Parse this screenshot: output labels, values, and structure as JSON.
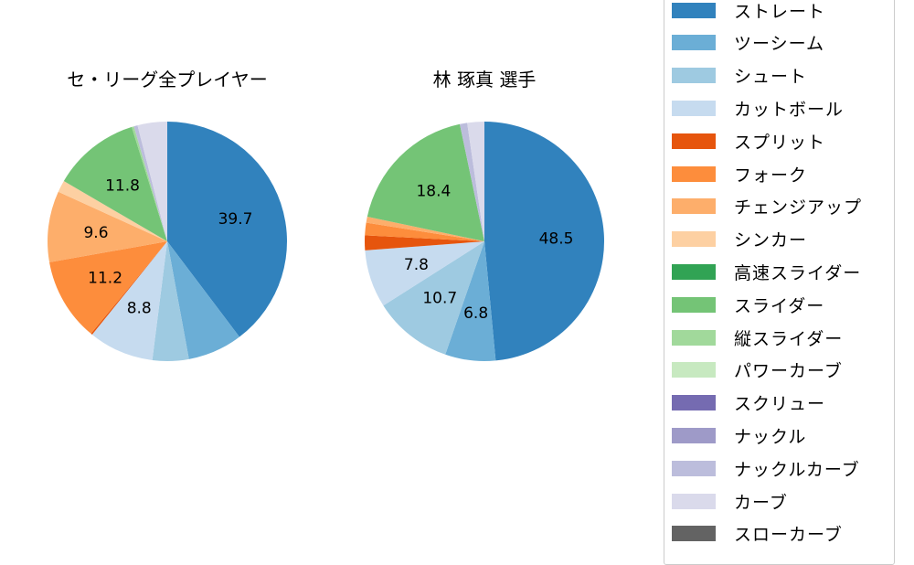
{
  "chart_data": [
    {
      "type": "pie",
      "title": "セ・リーグ全プレイヤー",
      "start_angle": 90,
      "direction": "clockwise",
      "categories": [
        "ストレート",
        "ツーシーム",
        "シュート",
        "カットボール",
        "スプリット",
        "フォーク",
        "チェンジアップ",
        "シンカー",
        "スライダー",
        "縦スライダー",
        "ナックルカーブ",
        "カーブ"
      ],
      "values": [
        39.7,
        7.4,
        4.9,
        8.8,
        0.2,
        11.2,
        9.6,
        1.6,
        11.8,
        0.3,
        0.5,
        4.0
      ],
      "labels_shown": [
        "39.7",
        "",
        "",
        "8.8",
        "",
        "11.2",
        "9.6",
        "",
        "11.8",
        "",
        "",
        ""
      ]
    },
    {
      "type": "pie",
      "title": "林 琢真  選手",
      "start_angle": 90,
      "direction": "clockwise",
      "categories": [
        "ストレート",
        "ツーシーム",
        "シュート",
        "カットボール",
        "スプリット",
        "フォーク",
        "チェンジアップ",
        "スライダー",
        "ナックルカーブ",
        "カーブ"
      ],
      "values": [
        48.5,
        6.8,
        10.7,
        7.8,
        2.0,
        1.7,
        0.8,
        18.4,
        1.0,
        2.3
      ],
      "labels_shown": [
        "48.5",
        "6.8",
        "10.7",
        "7.8",
        "",
        "",
        "",
        "18.4",
        "",
        ""
      ]
    }
  ],
  "legend": {
    "items": [
      {
        "label": "ストレート",
        "color": "#3182bd"
      },
      {
        "label": "ツーシーム",
        "color": "#6baed6"
      },
      {
        "label": "シュート",
        "color": "#9ecae1"
      },
      {
        "label": "カットボール",
        "color": "#c6dbef"
      },
      {
        "label": "スプリット",
        "color": "#e6550d"
      },
      {
        "label": "フォーク",
        "color": "#fd8d3c"
      },
      {
        "label": "チェンジアップ",
        "color": "#fdae6b"
      },
      {
        "label": "シンカー",
        "color": "#fdd0a2"
      },
      {
        "label": "高速スライダー",
        "color": "#31a354"
      },
      {
        "label": "スライダー",
        "color": "#74c476"
      },
      {
        "label": "縦スライダー",
        "color": "#a1d99b"
      },
      {
        "label": "パワーカーブ",
        "color": "#c7e9c0"
      },
      {
        "label": "スクリュー",
        "color": "#756bb1"
      },
      {
        "label": "ナックル",
        "color": "#9e9ac8"
      },
      {
        "label": "ナックルカーブ",
        "color": "#bcbddc"
      },
      {
        "label": "カーブ",
        "color": "#dadaeb"
      },
      {
        "label": "スローカーブ",
        "color": "#636363"
      }
    ]
  },
  "titles": {
    "left": "セ・リーグ全プレイヤー",
    "right": "林 琢真  選手"
  }
}
